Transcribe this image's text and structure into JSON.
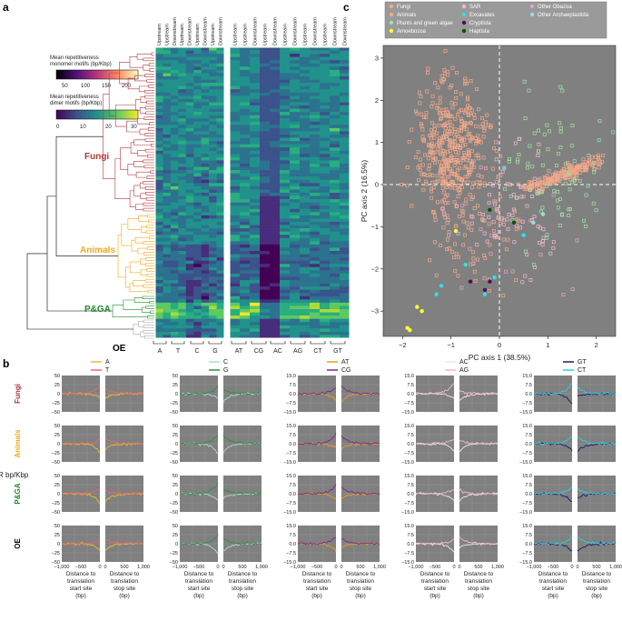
{
  "panels": {
    "a": "a",
    "b": "b",
    "c": "c"
  },
  "colors": {
    "fungi": "#b03a3a",
    "animals": "#f2a81d",
    "pga": "#1e8a2a",
    "oe": "#000000",
    "plot_bg": "#808080"
  },
  "heatmap": {
    "clades": [
      {
        "key": "fungi",
        "label": "Fungi"
      },
      {
        "key": "animals",
        "label": "Animals"
      },
      {
        "key": "pga",
        "label": "P&GA"
      }
    ],
    "oe_label": "OE",
    "left_columns": [
      "Upstream",
      "Upstream",
      "Downstream",
      "Upstream",
      "Downstream",
      "Upstream",
      "Downstream",
      "Upstream",
      "Downstream"
    ],
    "right_columns": [
      "Upstream",
      "Upstream",
      "Downstream",
      "Upstream",
      "Downstream",
      "Upstream",
      "Downstream",
      "Upstream",
      "Downstream",
      "Upstream",
      "Downstream",
      "Downstream"
    ],
    "left_groups": [
      "A",
      "T",
      "C",
      "G"
    ],
    "right_groups": [
      "AT",
      "CG",
      "AC",
      "AG",
      "CT",
      "GT"
    ],
    "colorbar_mono": {
      "label1": "Mean repetitiveness",
      "label2": "monomer motifs (bp/Kbp)",
      "ticks": [
        "50",
        "100",
        "150",
        "200"
      ]
    },
    "colorbar_di": {
      "label1": "Mean repetitiveness",
      "label2": "dimer motifs (bp/Kbp)",
      "ticks": [
        "0",
        "10",
        "20",
        "30"
      ]
    }
  },
  "lines_panel": {
    "row_labels": [
      "Fungi",
      "Animals",
      "P&GA",
      "OE"
    ],
    "ylabel": "ΔR bp/Kbp",
    "groups": [
      {
        "legend": [
          "A",
          "T"
        ],
        "colors": [
          "#f2b830",
          "#e86a6a"
        ],
        "yticks": [
          "50",
          "25",
          "0",
          "−25",
          "−50"
        ]
      },
      {
        "legend": [
          "C",
          "G"
        ],
        "colors": [
          "#a9dcd6",
          "#2f8f3a"
        ],
        "yticks": [
          "50",
          "25",
          "0",
          "−25",
          "−50"
        ]
      },
      {
        "legend": [
          "AT",
          "CG"
        ],
        "colors": [
          "#f29a1d",
          "#7a2a8a"
        ],
        "yticks": [
          "15.0",
          "7.5",
          "0.0",
          "−7.5",
          "−15.0"
        ]
      },
      {
        "legend": [
          "AC",
          "AG"
        ],
        "colors": [
          "#f5e9d8",
          "#f2b8c8"
        ],
        "yticks": [
          "15.0",
          "7.5",
          "0.0",
          "−7.5",
          "−15.0"
        ]
      },
      {
        "legend": [
          "GT",
          "CT"
        ],
        "colors": [
          "#1a1a6e",
          "#2ad3e0"
        ],
        "yticks": [
          "15.0",
          "7.5",
          "0.0",
          "−7.5",
          "−15.0"
        ]
      }
    ],
    "xticks_left": [
      "−1,000",
      "−500",
      "0"
    ],
    "xticks_right": [
      "0",
      "500",
      "1,000"
    ],
    "xlabel_left": [
      "Distance to",
      "translation",
      "start site",
      "(bp)"
    ],
    "xlabel_right": [
      "Distance to",
      "translation",
      "stop site",
      "(bp)"
    ]
  },
  "chart_data": {
    "type": "scatter",
    "title": "",
    "xlabel": "PC axis 1 (38.5%)",
    "ylabel": "PC axis 2 (16.5%)",
    "xlim": [
      -2.4,
      2.4
    ],
    "ylim": [
      -3.6,
      3.3
    ],
    "xticks": [
      -2,
      -1,
      0,
      1,
      2
    ],
    "yticks": [
      -3,
      -2,
      -1,
      0,
      1,
      2,
      3
    ],
    "legend_position": "top",
    "series": [
      {
        "name": "Fungi",
        "color": "#f4a98a",
        "cx": -1.0,
        "cy": 0.9,
        "sx": 0.35,
        "sy": 0.8,
        "n": 420,
        "extra": {
          "from": [
            0.6,
            -0.1
          ],
          "to": [
            2.1,
            0.6
          ],
          "n": 180
        }
      },
      {
        "name": "Animals",
        "color": "#f4a98a",
        "cx": -0.5,
        "cy": -1.0,
        "sx": 0.5,
        "sy": 0.7,
        "n": 80
      },
      {
        "name": "Plants and green algae",
        "color": "#9fe39f",
        "cx": 1.2,
        "cy": 0.3,
        "sx": 0.5,
        "sy": 0.9,
        "n": 80
      },
      {
        "name": "Amoebozoa",
        "color": "#ffff33",
        "points": [
          [
            -1.6,
            -3.0
          ],
          [
            -1.7,
            -2.9
          ],
          [
            -1.9,
            -3.4
          ],
          [
            -1.85,
            -3.45
          ],
          [
            -0.9,
            -1.1
          ]
        ]
      },
      {
        "name": "SAR",
        "color": "#f2b8d2",
        "cx": 0.2,
        "cy": -0.8,
        "sx": 0.5,
        "sy": 0.7,
        "n": 70
      },
      {
        "name": "Excavates",
        "color": "#33e0e6",
        "points": [
          [
            -1.2,
            -2.4
          ],
          [
            0.1,
            0.4
          ],
          [
            -0.1,
            -2.2
          ],
          [
            -0.7,
            -1.9
          ],
          [
            0.5,
            -1.2
          ],
          [
            -0.3,
            -2.6
          ],
          [
            -1.3,
            -2.6
          ]
        ]
      },
      {
        "name": "Cryptista",
        "color": "#4b0f58",
        "points": [
          [
            -0.6,
            -2.3
          ],
          [
            -0.2,
            -2.3
          ],
          [
            -0.3,
            -2.5
          ]
        ]
      },
      {
        "name": "Haptista",
        "color": "#114d11",
        "points": [
          [
            -0.2,
            -0.6
          ],
          [
            0.3,
            -0.9
          ]
        ]
      },
      {
        "name": "Other Obazoa",
        "color": "#e9a2c8",
        "cx": 0.0,
        "cy": -1.0,
        "sx": 0.8,
        "sy": 0.8,
        "n": 20
      },
      {
        "name": "Other Archaeplastida",
        "color": "#9ed6ea",
        "points": [
          [
            0.7,
            -0.9
          ],
          [
            0.9,
            -0.7
          ]
        ]
      }
    ]
  }
}
